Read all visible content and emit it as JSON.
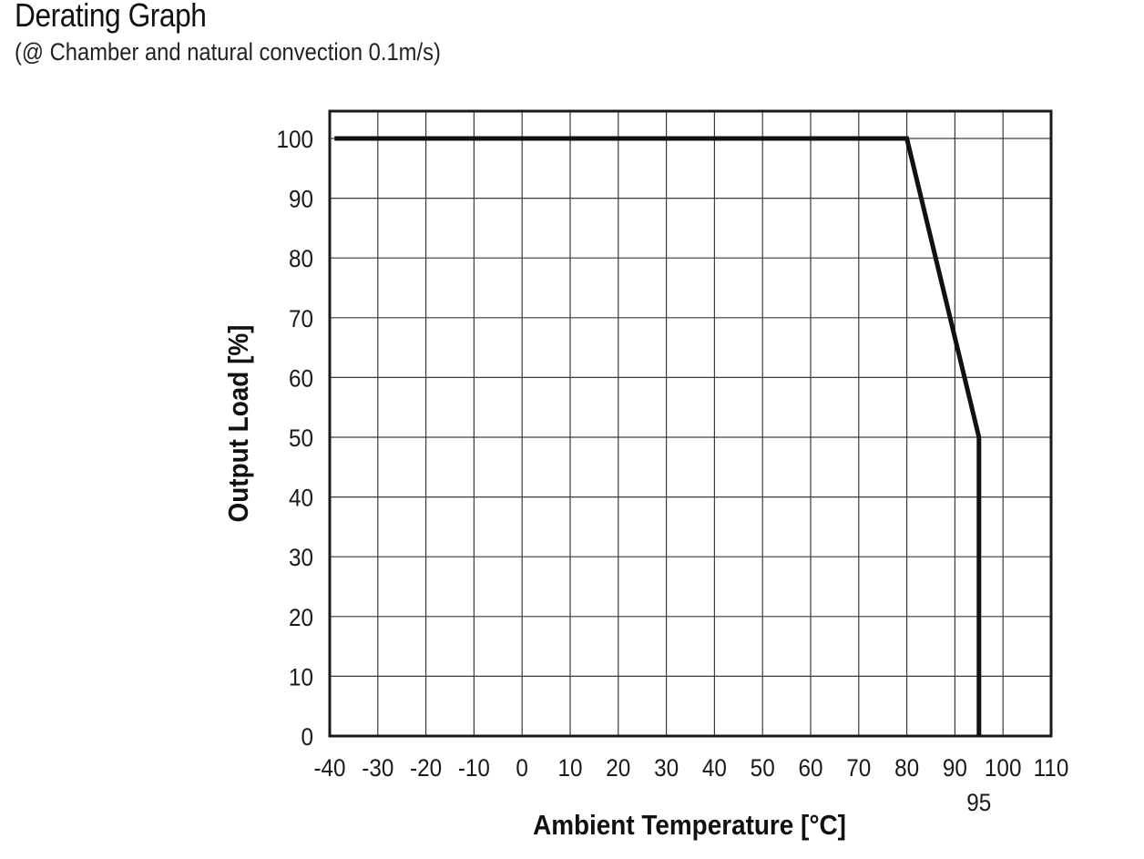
{
  "header": {
    "title": "Derating Graph",
    "subtitle": "(@ Chamber and natural convection 0.1m/s)"
  },
  "chart_data": {
    "type": "line",
    "title": "Derating Graph",
    "subtitle": "(@ Chamber and natural convection 0.1m/s)",
    "xlabel": "Ambient Temperature [°C]",
    "ylabel": "Output Load [%]",
    "xlim": [
      -40,
      110
    ],
    "ylim": [
      0,
      100
    ],
    "x_ticks": [
      -40,
      -30,
      -20,
      -10,
      0,
      10,
      20,
      30,
      40,
      50,
      60,
      70,
      80,
      90,
      100,
      110
    ],
    "y_ticks": [
      0,
      10,
      20,
      30,
      40,
      50,
      60,
      70,
      80,
      90,
      100
    ],
    "annotations": [
      {
        "x": 95,
        "text": "95"
      }
    ],
    "grid": true,
    "series": [
      {
        "x": [
          -39,
          80,
          95,
          95
        ],
        "y": [
          100,
          100,
          50,
          0
        ],
        "color": "#111111"
      }
    ]
  }
}
